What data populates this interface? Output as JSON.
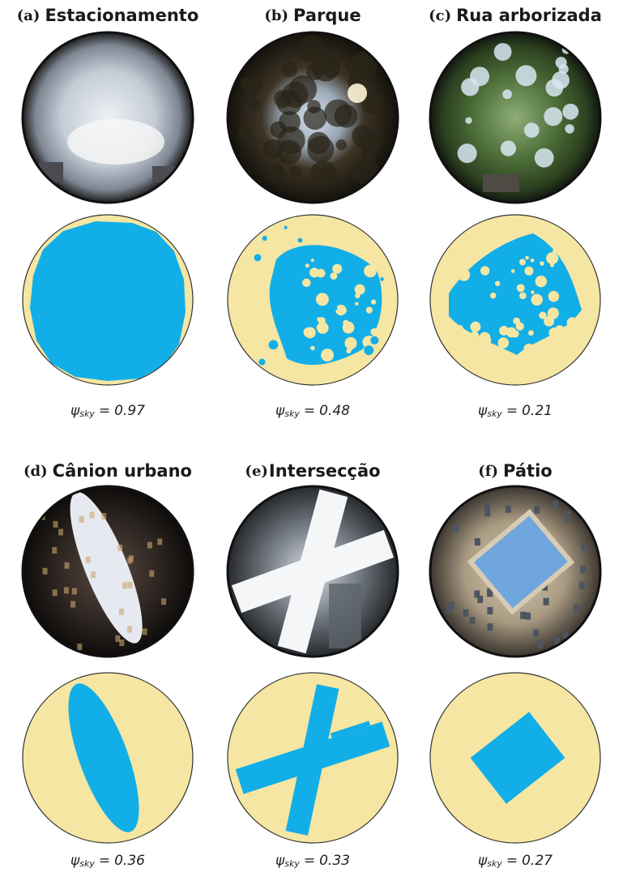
{
  "symbol": "ψ",
  "subscript": "sky",
  "operator": "=",
  "panels": [
    {
      "label": "(a)",
      "title": "Estacionamento",
      "value": 0.97
    },
    {
      "label": "(b)",
      "title": "Parque",
      "value": 0.48
    },
    {
      "label": "(c)",
      "title": "Rua arborizada",
      "value": 0.21
    },
    {
      "label": "(d)",
      "title": "Cânion urbano",
      "value": 0.36
    },
    {
      "label": "(e)",
      "title": "Intersecção",
      "value": 0.33
    },
    {
      "label": "(f)",
      "title": "Pátio",
      "value": 0.27
    }
  ]
}
